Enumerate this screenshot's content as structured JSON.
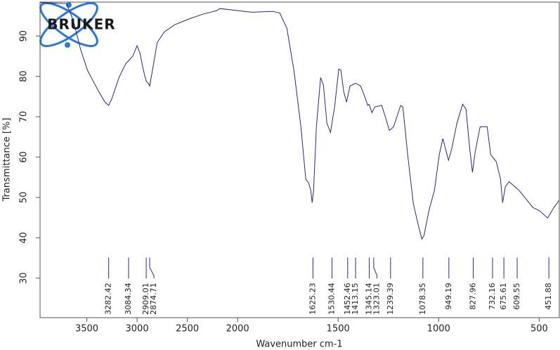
{
  "chart_data": {
    "type": "line",
    "logo": "BRUKER",
    "xlabel": "Wavenumber cm-1",
    "ylabel": "Transmittance [%]",
    "color": "#2a2a7a",
    "xlim": [
      3965,
      400
    ],
    "x_scale": {
      "break": 2000,
      "compression": 2
    },
    "ylim": [
      20.2,
      98.4
    ],
    "xticks": [
      3500,
      3000,
      2500,
      2000,
      1500,
      1000,
      500
    ],
    "yticks": [
      30,
      40,
      50,
      60,
      70,
      80,
      90
    ],
    "x": [
      3965,
      3701,
      3632,
      3562,
      3493,
      3389,
      3319,
      3282,
      3250,
      3180,
      3111,
      3076,
      3042,
      3007,
      3000,
      2972,
      2937,
      2909,
      2889,
      2875,
      2847,
      2799,
      2729,
      2625,
      2486,
      2347,
      2208,
      2174,
      2000,
      1930,
      1825,
      1790,
      1755,
      1720,
      1685,
      1661,
      1647,
      1636,
      1629,
      1622,
      1608,
      1587,
      1573,
      1556,
      1538,
      1517,
      1497,
      1486,
      1472,
      1458,
      1441,
      1413,
      1388,
      1364,
      1353,
      1346,
      1332,
      1318,
      1283,
      1266,
      1245,
      1224,
      1189,
      1178,
      1154,
      1126,
      1101,
      1084,
      1073,
      1049,
      1021,
      997,
      979,
      951,
      934,
      909,
      881,
      864,
      846,
      832,
      818,
      794,
      759,
      741,
      713,
      692,
      682,
      668,
      650,
      601,
      531,
      496,
      458,
      427,
      402
    ],
    "values": [
      98.3,
      98.0,
      93.7,
      86.7,
      81.5,
      76.6,
      73.6,
      72.8,
      74.5,
      79.7,
      83.2,
      84.1,
      85.0,
      87.2,
      87.6,
      85.8,
      81.5,
      78.8,
      78.3,
      77.6,
      81.5,
      88.4,
      91.0,
      92.8,
      94.2,
      95.4,
      96.3,
      96.8,
      96.3,
      95.9,
      96.1,
      95.7,
      91.9,
      81.5,
      67.5,
      54.5,
      53.6,
      51.8,
      48.7,
      51.8,
      67.5,
      79.7,
      77.9,
      68.4,
      66.1,
      72.7,
      81.8,
      81.5,
      76.2,
      73.6,
      77.6,
      78.3,
      77.6,
      74.5,
      72.8,
      73.1,
      71.0,
      72.4,
      72.8,
      70.1,
      66.6,
      67.5,
      72.8,
      72.4,
      60.6,
      48.4,
      43.1,
      39.7,
      40.5,
      46.6,
      51.8,
      60.6,
      64.6,
      59.2,
      62.3,
      68.4,
      73.1,
      71.9,
      62.3,
      56.2,
      61.4,
      67.5,
      67.5,
      60.6,
      58.8,
      54.5,
      48.7,
      52.7,
      53.9,
      51.8,
      47.5,
      46.6,
      44.9,
      47.5,
      49.2
    ],
    "peaks": [
      3282.42,
      3084.34,
      2909.01,
      2874.71,
      1625.23,
      1530.44,
      1452.46,
      1413.15,
      1345.14,
      1323.01,
      1239.39,
      1078.35,
      949.19,
      827.96,
      732.16,
      675.61,
      609.55,
      451.88
    ],
    "peak_color": "#2a2a9a"
  }
}
